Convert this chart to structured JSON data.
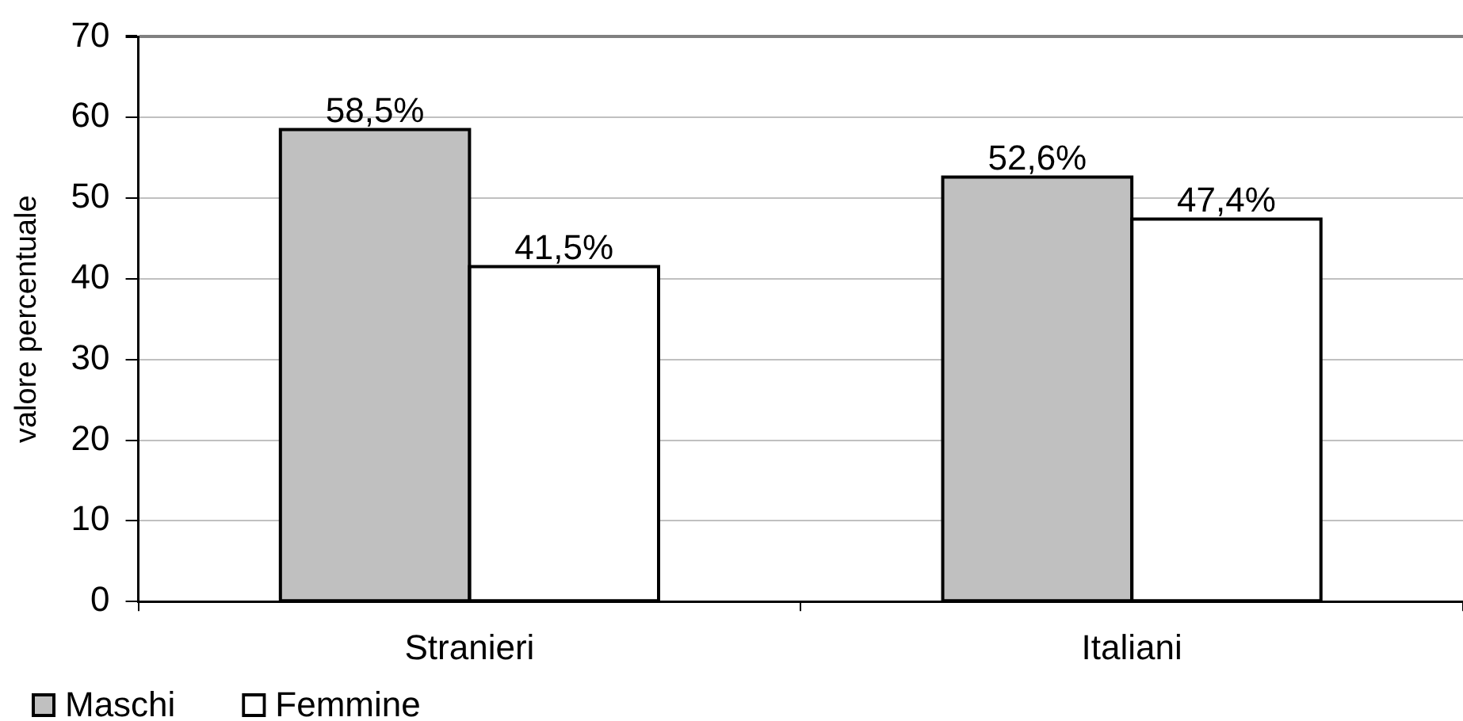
{
  "chart_data": {
    "type": "bar",
    "ylabel": "valore percentuale",
    "categories": [
      "Stranieri",
      "Italiani"
    ],
    "series": [
      {
        "name": "Maschi",
        "color": "#c0c0c0",
        "values": [
          58.5,
          52.6
        ],
        "value_labels": [
          "58,5%",
          "52,6%"
        ]
      },
      {
        "name": "Femmine",
        "color": "#ffffff",
        "values": [
          41.5,
          47.4
        ],
        "value_labels": [
          "41,5%",
          "47,4%"
        ]
      }
    ],
    "ylim": [
      0,
      70
    ],
    "yticks": [
      0,
      10,
      20,
      30,
      40,
      50,
      60,
      70
    ],
    "grid": "y",
    "legend": "bottom left"
  }
}
